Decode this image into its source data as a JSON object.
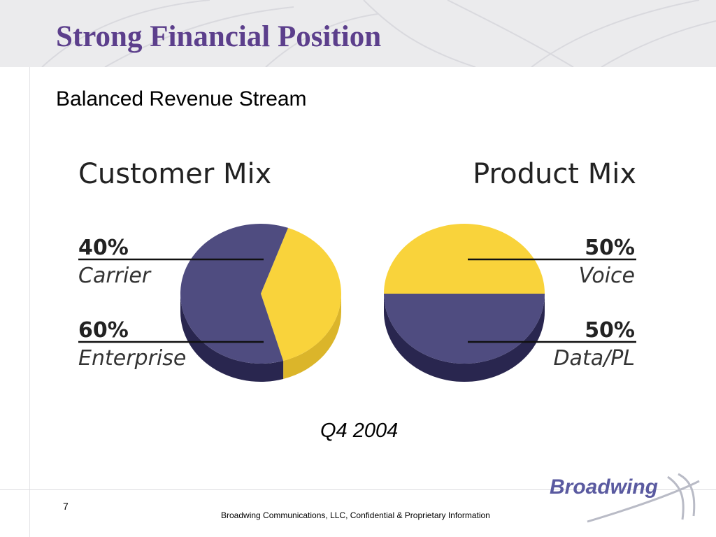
{
  "slide": {
    "title": "Strong Financial Position",
    "subtitle": "Balanced Revenue Stream",
    "period": "Q4 2004",
    "page_number": "7",
    "footer": "Broadwing Communications, LLC,  Confidential & Proprietary Information",
    "logo_text": "Broadwing"
  },
  "colors": {
    "title": "#5c3f8c",
    "yellow_top": "#f9d33b",
    "yellow_side": "#dbb52a",
    "navy_top": "#4f4c80",
    "navy_side": "#29264f",
    "logo": "#5a5aa0"
  },
  "chart_data": [
    {
      "type": "pie",
      "title": "Customer Mix",
      "slices": [
        {
          "name": "Carrier",
          "label": "40%",
          "value": 40,
          "color": "yellow"
        },
        {
          "name": "Enterprise",
          "label": "60%",
          "value": 60,
          "color": "navy"
        }
      ],
      "labels_side": "left"
    },
    {
      "type": "pie",
      "title": "Product Mix",
      "slices": [
        {
          "name": "Voice",
          "label": "50%",
          "value": 50,
          "color": "yellow"
        },
        {
          "name": "Data/PL",
          "label": "50%",
          "value": 50,
          "color": "navy"
        }
      ],
      "labels_side": "right"
    }
  ]
}
